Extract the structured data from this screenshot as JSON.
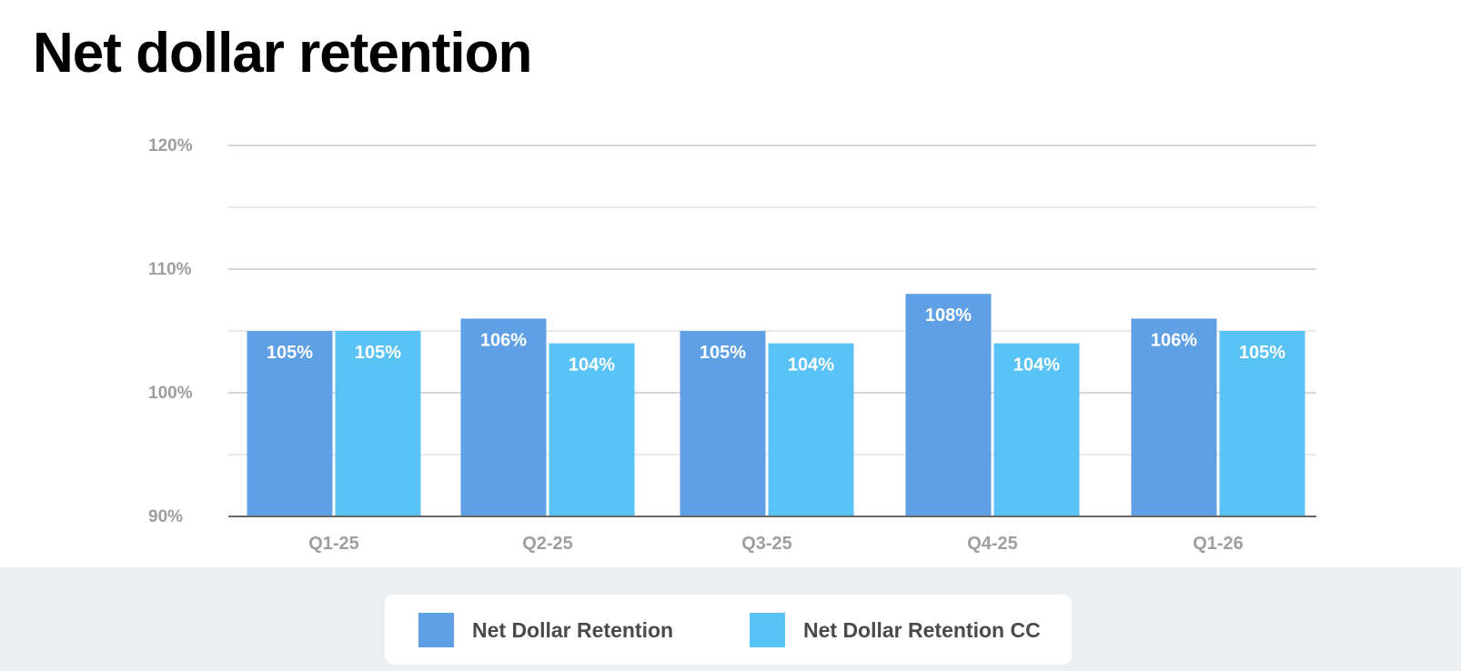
{
  "title": "Net dollar retention",
  "chart_data": {
    "type": "bar",
    "categories": [
      "Q1-25",
      "Q2-25",
      "Q3-25",
      "Q4-25",
      "Q1-26"
    ],
    "series": [
      {
        "name": "Net Dollar Retention",
        "values": [
          105,
          106,
          105,
          108,
          106
        ],
        "labels": [
          "105%",
          "106%",
          "105%",
          "108%",
          "106%"
        ],
        "color": "#5fa0e5"
      },
      {
        "name": "Net Dollar Retention CC",
        "values": [
          105,
          104,
          104,
          104,
          105
        ],
        "labels": [
          "105%",
          "104%",
          "104%",
          "104%",
          "105%"
        ],
        "color": "#5ac3f5"
      }
    ],
    "ylim": [
      90,
      120
    ],
    "yticks": [
      {
        "value": 90,
        "label": "90%"
      },
      {
        "value": 100,
        "label": "100%"
      },
      {
        "value": 110,
        "label": "110%"
      },
      {
        "value": 120,
        "label": "120%"
      }
    ],
    "minor_gridlines": [
      105,
      115,
      95
    ],
    "grid": true,
    "legend_position": "bottom",
    "xlabel": "",
    "ylabel": ""
  }
}
